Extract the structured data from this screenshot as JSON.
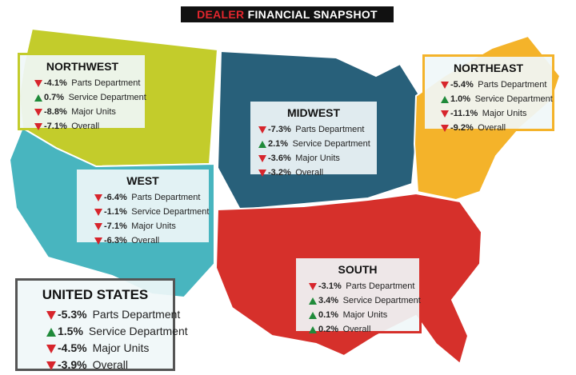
{
  "title": {
    "highlight": "DEALER",
    "rest": "FINANCIAL SNAPSHOT"
  },
  "regions": [
    {
      "name": "NORTHWEST",
      "items": [
        {
          "value": "-4.1%",
          "label": "Parts Department"
        },
        {
          "value": "0.7%",
          "label": "Service Department"
        },
        {
          "value": "-8.8%",
          "label": "Major Units"
        },
        {
          "value": "-7.1%",
          "label": "Overall"
        }
      ]
    },
    {
      "name": "NORTHEAST",
      "items": [
        {
          "value": "-5.4%",
          "label": "Parts Department"
        },
        {
          "value": "1.0%",
          "label": "Service Department"
        },
        {
          "value": "-11.1%",
          "label": "Major Units"
        },
        {
          "value": "-9.2%",
          "label": "Overall"
        }
      ]
    },
    {
      "name": "MIDWEST",
      "items": [
        {
          "value": "-7.3%",
          "label": "Parts Department"
        },
        {
          "value": "2.1%",
          "label": "Service Department"
        },
        {
          "value": "-3.6%",
          "label": "Major Units"
        },
        {
          "value": "-3.2%",
          "label": "Overall"
        }
      ]
    },
    {
      "name": "WEST",
      "items": [
        {
          "value": "-6.4%",
          "label": "Parts Department"
        },
        {
          "value": "-1.1%",
          "label": "Service Department"
        },
        {
          "value": "-7.1%",
          "label": "Major Units"
        },
        {
          "value": "-6.3%",
          "label": "Overall"
        }
      ]
    },
    {
      "name": "SOUTH",
      "items": [
        {
          "value": "-3.1%",
          "label": "Parts Department"
        },
        {
          "value": "3.4%",
          "label": "Service Department"
        },
        {
          "value": "0.1%",
          "label": "Major Units"
        },
        {
          "value": "0.2%",
          "label": "Overall"
        }
      ]
    },
    {
      "name": "UNITED STATES",
      "items": [
        {
          "value": "-5.3%",
          "label": "Parts Department"
        },
        {
          "value": "1.5%",
          "label": "Service Department"
        },
        {
          "value": "-4.5%",
          "label": "Major Units"
        },
        {
          "value": "-3.9%",
          "label": "Overall"
        }
      ]
    }
  ]
}
